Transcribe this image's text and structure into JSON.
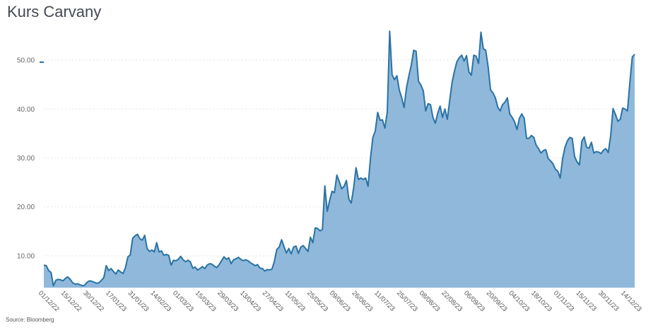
{
  "chart_title": "Kurs Carvany",
  "source": "Source: Bloomberg",
  "colors": {
    "line": "#2a72a4",
    "area": "#8fb8da",
    "grid": "#e6e6e6",
    "title": "#444a52"
  },
  "chart_data": {
    "type": "area",
    "title": "Kurs Carvany",
    "xlabel": "",
    "ylabel": "",
    "ylim": [
      3.5,
      56.5
    ],
    "yticks": [
      10,
      20,
      30,
      40,
      50
    ],
    "ytick_labels": [
      "10.00",
      "20.00",
      "30.00",
      "40.00",
      "50.00"
    ],
    "grid": "horizontal-dotted",
    "xtick_labels": [
      "01/12/22",
      "15/12/22",
      "30/12/22",
      "17/01/23",
      "31/01/23",
      "14/02/23",
      "01/03/23",
      "15/03/23",
      "29/03/23",
      "13/04/23",
      "27/04/23",
      "11/05/23",
      "25/05/23",
      "09/06/23",
      "26/06/23",
      "11/07/23",
      "25/07/23",
      "08/08/23",
      "22/08/23",
      "06/09/23",
      "20/09/23",
      "04/10/23",
      "18/10/23",
      "01/11/23",
      "15/11/23",
      "30/11/23",
      "14/12/23"
    ],
    "series": [
      {
        "values": [
          8.1,
          8.0,
          7.0,
          6.6,
          3.9,
          5.0,
          5.2,
          5.1,
          4.9,
          5.4,
          5.7,
          5.2,
          4.5,
          4.2,
          4.3,
          4.1,
          3.9,
          4.0,
          4.6,
          4.9,
          4.8,
          4.6,
          4.4,
          4.5,
          5.0,
          5.6,
          8.0,
          7.0,
          7.4,
          6.8,
          6.3,
          7.1,
          6.7,
          6.4,
          7.6,
          9.8,
          10.2,
          13.6,
          14.1,
          14.4,
          13.5,
          13.2,
          14.2,
          11.5,
          10.9,
          11.2,
          10.8,
          12.7,
          10.8,
          11.0,
          10.1,
          10.3,
          10.1,
          8.1,
          9.1,
          9.0,
          9.3,
          9.9,
          9.2,
          8.8,
          9.1,
          8.8,
          7.5,
          7.7,
          7.1,
          7.4,
          7.8,
          7.4,
          8.1,
          8.4,
          8.3,
          7.9,
          7.6,
          8.2,
          9.0,
          9.8,
          9.3,
          9.6,
          8.4,
          9.2,
          9.4,
          9.7,
          9.3,
          9.0,
          9.2,
          9.0,
          8.6,
          8.3,
          8.0,
          8.2,
          7.5,
          7.4,
          6.9,
          7.2,
          7.1,
          7.3,
          8.9,
          11.3,
          11.8,
          13.3,
          11.9,
          10.6,
          11.5,
          10.4,
          11.8,
          12.0,
          10.5,
          11.8,
          12.1,
          11.5,
          10.9,
          13.8,
          12.7,
          15.7,
          15.6,
          15.1,
          15.4,
          24.3,
          19.1,
          21.3,
          23.2,
          22.9,
          26.5,
          25.2,
          23.7,
          24.2,
          25.4,
          21.6,
          20.8,
          23.9,
          28.0,
          25.6,
          25.9,
          25.6,
          25.9,
          24.2,
          29.9,
          34.2,
          35.5,
          39.3,
          37.7,
          37.8,
          36.1,
          39.4,
          55.9,
          47.0,
          46.0,
          46.8,
          43.9,
          42.3,
          40.3,
          44.3,
          46.8,
          49.0,
          52.0,
          51.8,
          45.7,
          44.9,
          43.7,
          39.6,
          41.1,
          40.9,
          38.3,
          37.1,
          39.1,
          40.6,
          38.3,
          40.0,
          37.9,
          41.8,
          45.5,
          47.8,
          49.7,
          50.5,
          51.0,
          49.8,
          50.9,
          47.6,
          46.9,
          51.0,
          50.8,
          49.3,
          55.7,
          52.3,
          52.0,
          48.6,
          43.9,
          43.3,
          42.3,
          40.4,
          39.6,
          40.9,
          41.4,
          42.3,
          39.0,
          38.3,
          37.4,
          35.8,
          38.1,
          39.0,
          38.1,
          34.0,
          34.0,
          34.6,
          34.2,
          32.6,
          31.9,
          31.0,
          31.5,
          31.7,
          29.9,
          29.4,
          28.8,
          27.7,
          27.3,
          25.9,
          29.9,
          32.2,
          33.5,
          34.2,
          34.0,
          30.3,
          29.2,
          28.6,
          33.4,
          34.3,
          32.2,
          32.0,
          33.2,
          31.0,
          31.3,
          31.2,
          30.9,
          31.6,
          31.9,
          31.1,
          34.5,
          40.1,
          38.9,
          37.5,
          37.9,
          40.2,
          40.0,
          39.6,
          45.4,
          50.6,
          51.2
        ]
      }
    ]
  }
}
